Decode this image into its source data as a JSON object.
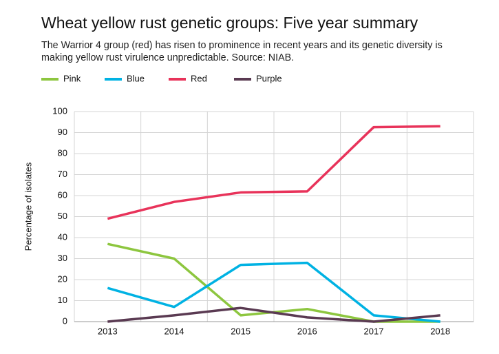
{
  "chart_data": {
    "type": "line",
    "title": "Wheat yellow rust genetic groups: Five year summary",
    "subtitle": "The Warrior 4 group (red) has risen to prominence in recent years and its genetic diversity is making yellow rust virulence unpredictable. Source: NIAB.",
    "y_label": "Percentage of isolates",
    "categories": [
      "2013",
      "2014",
      "2015",
      "2016",
      "2017",
      "2018"
    ],
    "series": [
      {
        "name": "Pink",
        "color": "#8dc63f",
        "values": [
          37,
          30,
          3,
          6,
          0,
          0
        ]
      },
      {
        "name": "Blue",
        "color": "#00b2e3",
        "values": [
          16,
          7,
          27,
          28,
          3,
          0
        ]
      },
      {
        "name": "Red",
        "color": "#e8335a",
        "values": [
          49,
          57,
          61.5,
          62,
          92.6,
          93
        ]
      },
      {
        "name": "Purple",
        "color": "#5a3a52",
        "values": [
          0,
          3,
          6.5,
          2,
          0,
          3
        ]
      }
    ],
    "ylim": [
      0,
      100
    ],
    "yticks": [
      0,
      10,
      20,
      30,
      40,
      50,
      60,
      70,
      80,
      90,
      100
    ],
    "grid": true,
    "legend": "top"
  }
}
